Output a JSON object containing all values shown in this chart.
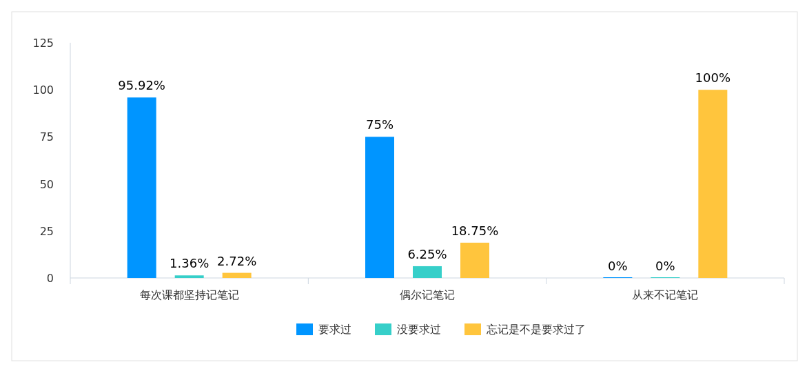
{
  "chart_data": {
    "type": "bar",
    "categories": [
      "每次课都坚持记笔记",
      "偶尔记笔记",
      "从来不记笔记"
    ],
    "series": [
      {
        "name": "要求过",
        "color": "#0095ff",
        "values": [
          95.92,
          75,
          0
        ],
        "value_labels": [
          "95.92%",
          "75%",
          "0%"
        ]
      },
      {
        "name": "没要求过",
        "color": "#36cfc9",
        "values": [
          1.36,
          6.25,
          0
        ],
        "value_labels": [
          "1.36%",
          "6.25%",
          "0%"
        ]
      },
      {
        "name": "忘记是不是要求过了",
        "color": "#ffc53d",
        "values": [
          2.72,
          18.75,
          100
        ],
        "value_labels": [
          "2.72%",
          "18.75%",
          "100%"
        ]
      }
    ],
    "ylim": [
      0,
      125
    ],
    "yticks": [
      0,
      25,
      50,
      75,
      100,
      125
    ],
    "grid": false,
    "legend": "bottom"
  }
}
